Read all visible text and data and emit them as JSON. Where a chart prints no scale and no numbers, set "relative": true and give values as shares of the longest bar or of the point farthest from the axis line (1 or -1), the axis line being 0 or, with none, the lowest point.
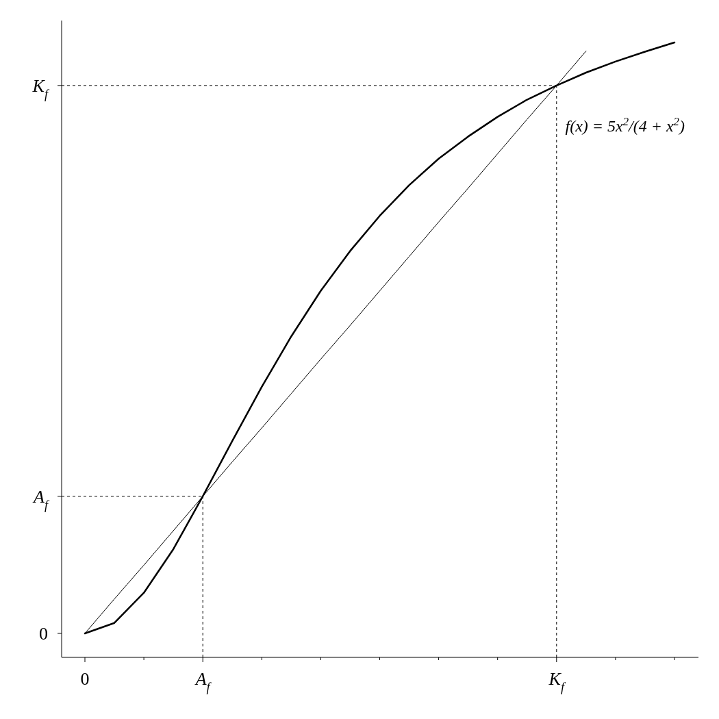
{
  "chart_data": {
    "type": "line",
    "relative": true,
    "categories": [
      "0",
      null,
      null,
      null,
      "A$_{f}$",
      null,
      null,
      null,
      null,
      null,
      null,
      null,
      null,
      null,
      null,
      null,
      "K$_{f}$",
      null,
      null,
      null,
      null
    ],
    "series": [
      {
        "name": "f(x) = 5x$^{2}$/(4 + x$^{2}$)",
        "color": "#000000",
        "values": [
          0.039,
          0.056,
          0.105,
          0.176,
          0.262,
          0.352,
          0.44,
          0.522,
          0.596,
          0.661,
          0.718,
          0.768,
          0.811,
          0.847,
          0.879,
          0.907,
          0.93,
          0.951,
          0.969,
          0.985,
          1
        ]
      },
      {
        "color": "#000000",
        "values": [
          0.039,
          0.095,
          0.15,
          0.206,
          0.262,
          0.318,
          0.373,
          0.429,
          0.485,
          0.54,
          0.596,
          0.652,
          0.708,
          0.763,
          0.819,
          0.875,
          0.93,
          0.986,
          null,
          null,
          null
        ]
      }
    ],
    "ref_lines": [
      {
        "axis": "x",
        "value": "A$_{f}$",
        "line_style": "dashed",
        "color": "#000000"
      },
      {
        "axis": "x",
        "value": "K$_{f}$",
        "line_style": "dashed",
        "color": "#000000"
      },
      {
        "axis": "y",
        "value": 0.262,
        "label": "A$_{f}$",
        "line_style": "dashed",
        "color": "#000000"
      },
      {
        "axis": "y",
        "value": 0.93,
        "label": "K$_{f}$",
        "line_style": "dashed",
        "color": "#000000"
      }
    ],
    "annotations": [
      "0"
    ],
    "line_style": "solid"
  }
}
